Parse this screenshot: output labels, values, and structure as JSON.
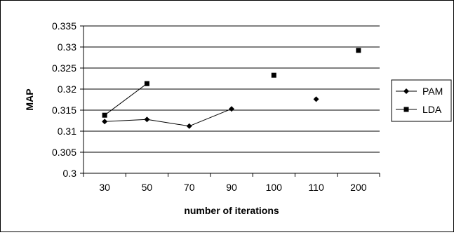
{
  "chart_data": {
    "type": "line",
    "categories": [
      "30",
      "50",
      "70",
      "90",
      "100",
      "110",
      "200"
    ],
    "series": [
      {
        "name": "PAM",
        "values": [
          0.3123,
          0.3128,
          0.3112,
          0.3153,
          null,
          0.3176,
          null
        ],
        "marker": "diamond",
        "color": "#000000"
      },
      {
        "name": "LDA",
        "values": [
          0.3138,
          0.3213,
          null,
          null,
          0.3233,
          null,
          0.3292
        ],
        "marker": "square",
        "color": "#000000"
      }
    ],
    "y_ticks": [
      "0.3",
      "0.305",
      "0.31",
      "0.315",
      "0.32",
      "0.325",
      "0.33",
      "0.335"
    ],
    "title": "",
    "xlabel": "number of iterations",
    "ylabel": "MAP",
    "ylim": [
      0.3,
      0.335
    ],
    "grid": "horizontal",
    "legend": "right"
  }
}
